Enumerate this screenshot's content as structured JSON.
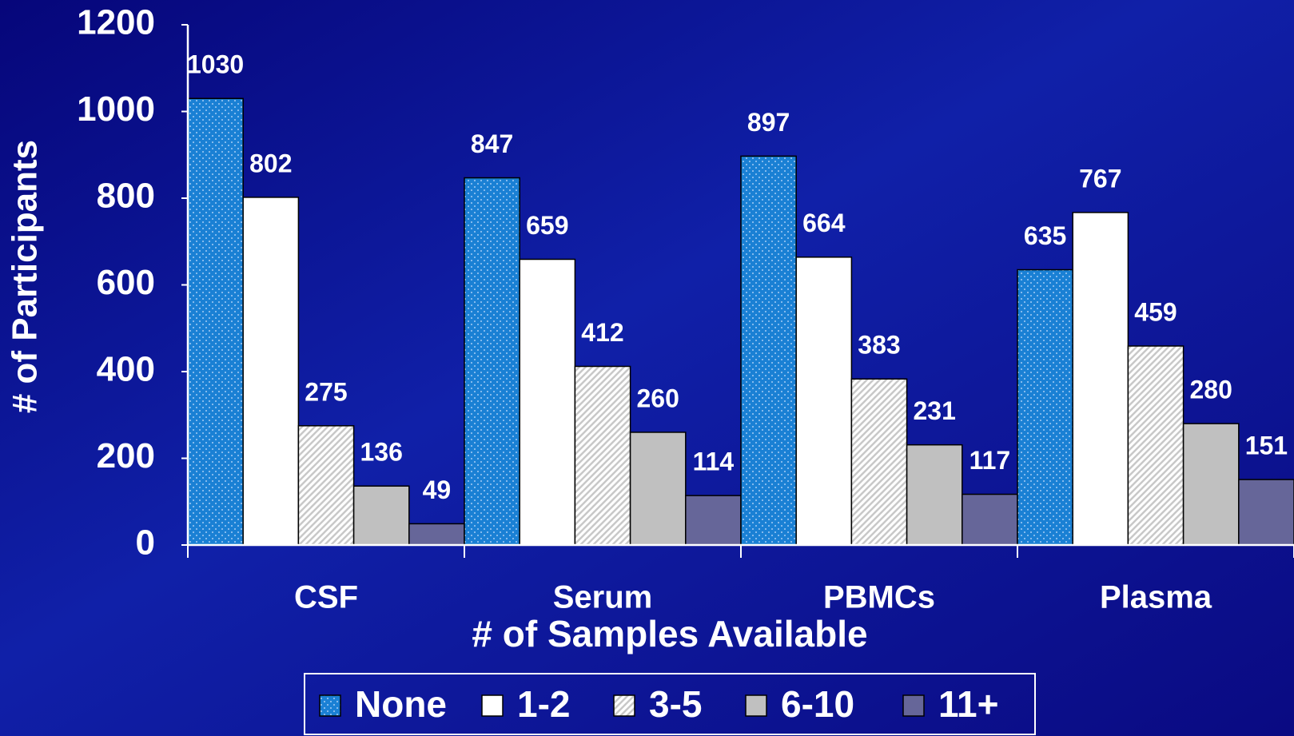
{
  "chart_data": {
    "type": "bar",
    "y_label": "# of Participants",
    "x_label": "# of Samples Available",
    "categories": [
      "CSF",
      "Serum",
      "PBMCs",
      "Plasma"
    ],
    "series": [
      {
        "name": "None",
        "color": "#1a80d4",
        "pattern": "dots",
        "values": [
          1030,
          847,
          897,
          635
        ]
      },
      {
        "name": "1-2",
        "color": "#ffffff",
        "values": [
          802,
          659,
          664,
          767
        ]
      },
      {
        "name": "3-5",
        "color": "#c8c8c8",
        "pattern": "hatch",
        "values": [
          275,
          412,
          383,
          459
        ]
      },
      {
        "name": "6-10",
        "color": "#c0c0c0",
        "values": [
          136,
          260,
          231,
          280
        ]
      },
      {
        "name": "11+",
        "color": "#666699",
        "values": [
          49,
          114,
          117,
          151
        ]
      }
    ],
    "ylim": [
      0,
      1200
    ],
    "yticks": [
      0,
      200,
      400,
      600,
      800,
      1000,
      1200
    ],
    "legend": "bottom"
  }
}
